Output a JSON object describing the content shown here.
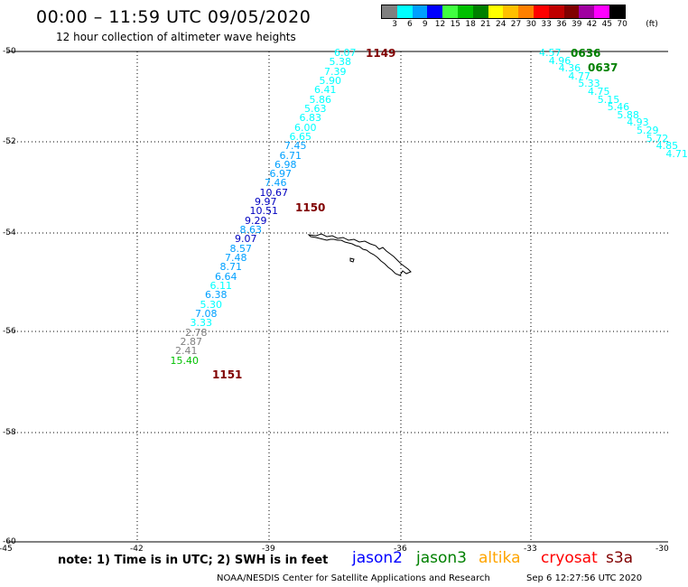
{
  "header": {
    "title": "00:00 – 11:59 UTC 09/05/2020",
    "subtitle": "12 hour collection of altimeter wave heights"
  },
  "legend": {
    "unit": "(ft)",
    "bins": [
      {
        "label": "3",
        "color": "#808080"
      },
      {
        "label": "6",
        "color": "#00ffff"
      },
      {
        "label": "9",
        "color": "#00a0ff"
      },
      {
        "label": "12",
        "color": "#0000ff"
      },
      {
        "label": "15",
        "color": "#40ff40"
      },
      {
        "label": "18",
        "color": "#00c000"
      },
      {
        "label": "21",
        "color": "#008000"
      },
      {
        "label": "24",
        "color": "#ffff00"
      },
      {
        "label": "27",
        "color": "#ffc000"
      },
      {
        "label": "30",
        "color": "#ff8000"
      },
      {
        "label": "33",
        "color": "#ff0000"
      },
      {
        "label": "36",
        "color": "#c00000"
      },
      {
        "label": "39",
        "color": "#800000"
      },
      {
        "label": "42",
        "color": "#a000a0"
      },
      {
        "label": "45",
        "color": "#ff00ff"
      },
      {
        "label": "70",
        "color": "#000000"
      }
    ]
  },
  "axes": {
    "lat_labels": [
      "-50",
      "-52",
      "-54",
      "-56",
      "-58",
      "-60"
    ],
    "lon_labels": [
      "-45",
      "-42",
      "-39",
      "-36",
      "-33",
      "-30"
    ]
  },
  "tracks": [
    {
      "points": [
        {
          "v": "6.07",
          "c": "#00ffff"
        },
        {
          "v": "5.38",
          "c": "#00ffff"
        },
        {
          "v": "7.39",
          "c": "#00ffff"
        },
        {
          "v": "5.90",
          "c": "#00ffff"
        },
        {
          "v": "6.41",
          "c": "#00ffff"
        },
        {
          "v": "5.86",
          "c": "#00ffff"
        },
        {
          "v": "5.63",
          "c": "#00ffff"
        },
        {
          "v": "6.83",
          "c": "#00ffff"
        },
        {
          "v": "6.00",
          "c": "#00ffff"
        },
        {
          "v": "6.65",
          "c": "#00ffff"
        },
        {
          "v": "7.45",
          "c": "#00a0ff"
        },
        {
          "v": "6.71",
          "c": "#00a0ff"
        },
        {
          "v": "6.98",
          "c": "#00a0ff"
        },
        {
          "v": "6.97",
          "c": "#00a0ff"
        },
        {
          "v": "7.46",
          "c": "#00a0ff"
        },
        {
          "v": "10.67",
          "c": "#0000c0"
        },
        {
          "v": "9.97",
          "c": "#0000c0"
        },
        {
          "v": "10.51",
          "c": "#0000c0"
        },
        {
          "v": "9.29",
          "c": "#0000c0"
        },
        {
          "v": "8.63",
          "c": "#00a0ff"
        },
        {
          "v": "9.07",
          "c": "#0000c0"
        },
        {
          "v": "8.57",
          "c": "#00a0ff"
        },
        {
          "v": "7.48",
          "c": "#00a0ff"
        },
        {
          "v": "8.71",
          "c": "#00a0ff"
        },
        {
          "v": "6.64",
          "c": "#00a0ff"
        },
        {
          "v": "6.11",
          "c": "#00ffff"
        },
        {
          "v": "6.38",
          "c": "#00a0ff"
        },
        {
          "v": "5.30",
          "c": "#00ffff"
        },
        {
          "v": "7.08",
          "c": "#00a0ff"
        },
        {
          "v": "3.33",
          "c": "#00ffff"
        },
        {
          "v": "2.78",
          "c": "#808080"
        },
        {
          "v": "2.87",
          "c": "#808080"
        },
        {
          "v": "2.41",
          "c": "#808080"
        },
        {
          "v": "15.40",
          "c": "#00c000"
        }
      ],
      "markers": [
        {
          "time": "1149",
          "color": "#800000"
        },
        {
          "time": "1150",
          "color": "#800000"
        },
        {
          "time": "1151",
          "color": "#800000"
        }
      ]
    },
    {
      "points": [
        {
          "v": "4.57",
          "c": "#00ffff"
        },
        {
          "v": "4.96",
          "c": "#00ffff"
        },
        {
          "v": "4.36",
          "c": "#00ffff"
        },
        {
          "v": "4.77",
          "c": "#00ffff"
        },
        {
          "v": "5.33",
          "c": "#00ffff"
        },
        {
          "v": "4.75",
          "c": "#00ffff"
        },
        {
          "v": "5.15",
          "c": "#00ffff"
        },
        {
          "v": "5.46",
          "c": "#00ffff"
        },
        {
          "v": "5.88",
          "c": "#00ffff"
        },
        {
          "v": "4.93",
          "c": "#00ffff"
        },
        {
          "v": "5.29",
          "c": "#00ffff"
        },
        {
          "v": "5.72",
          "c": "#00ffff"
        },
        {
          "v": "4.85",
          "c": "#00ffff"
        },
        {
          "v": "4.71",
          "c": "#00ffff"
        }
      ],
      "markers": [
        {
          "time": "0636",
          "color": "#008000"
        },
        {
          "time": "0637",
          "color": "#008000"
        }
      ]
    }
  ],
  "footer": {
    "note": "note:  1) Time is in UTC;  2) SWH is in feet",
    "satellites": [
      {
        "name": "jason2",
        "color": "#0000ff"
      },
      {
        "name": "jason3",
        "color": "#008000"
      },
      {
        "name": "altika",
        "color": "#ffa500"
      },
      {
        "name": "cryosat",
        "color": "#ff0000"
      },
      {
        "name": "s3a",
        "color": "#800000"
      }
    ],
    "credit": "NOAA/NESDIS Center for Satellite Applications and Research",
    "timestamp": "Sep  6 12:27:56 UTC 2020"
  }
}
